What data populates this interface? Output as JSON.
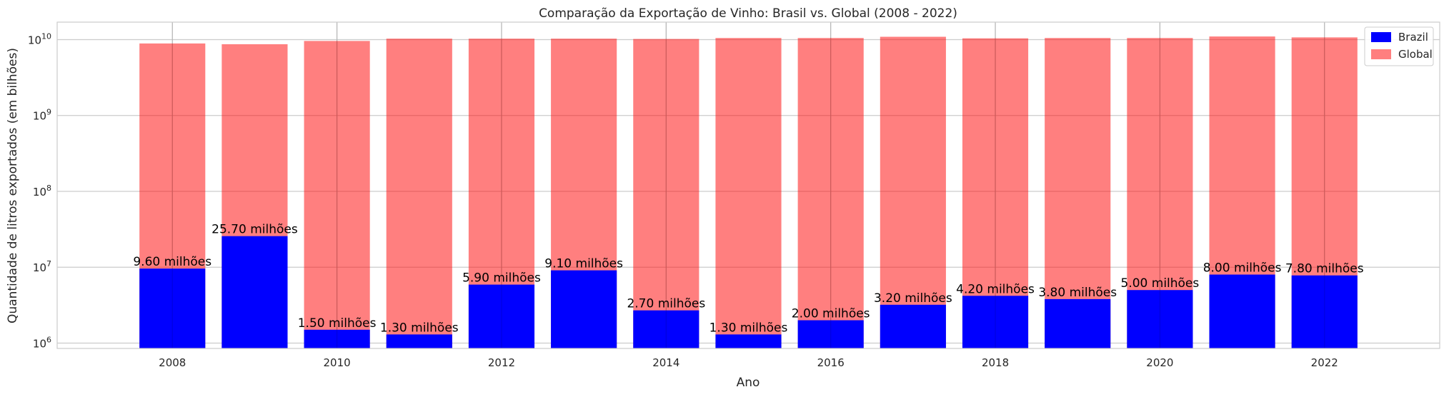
{
  "chart_data": {
    "type": "bar",
    "title": "Comparação da Exportação de Vinho: Brasil vs. Global (2008 - 2022)",
    "xlabel": "Ano",
    "ylabel": "Quantidade de litros exportados (em bilhões)",
    "yscale": "log",
    "ylim": [
      850000,
      17000000000
    ],
    "xlim": [
      2006.6,
      2023.4
    ],
    "x_ticks": [
      2008,
      2010,
      2012,
      2014,
      2016,
      2018,
      2020,
      2022
    ],
    "y_ticks": [
      {
        "value": 1000000,
        "base": "10",
        "exp": "6"
      },
      {
        "value": 10000000,
        "base": "10",
        "exp": "7"
      },
      {
        "value": 100000000,
        "base": "10",
        "exp": "8"
      },
      {
        "value": 1000000000,
        "base": "10",
        "exp": "9"
      },
      {
        "value": 10000000000,
        "base": "10",
        "exp": "10"
      }
    ],
    "grid": true,
    "legend_position": "top-right",
    "x": [
      2008,
      2009,
      2010,
      2011,
      2012,
      2013,
      2014,
      2015,
      2016,
      2017,
      2018,
      2019,
      2020,
      2021,
      2022
    ],
    "series": [
      {
        "name": "Brazil",
        "color": "#0000ff",
        "values": [
          9600000,
          25700000,
          1500000,
          1300000,
          5900000,
          9100000,
          2700000,
          1300000,
          2000000,
          3200000,
          4200000,
          3800000,
          5000000,
          8000000,
          7800000
        ],
        "labels": [
          "9.60 milhões",
          "25.70 milhões",
          "1.50 milhões",
          "1.30 milhões",
          "5.90 milhões",
          "9.10 milhões",
          "2.70 milhões",
          "1.30 milhões",
          "2.00 milhões",
          "3.20 milhões",
          "4.20 milhões",
          "3.80 milhões",
          "5.00 milhões",
          "8.00 milhões",
          "7.80 milhões"
        ]
      },
      {
        "name": "Global",
        "color": "#ff0000",
        "opacity": 0.5,
        "values": [
          8900000000,
          8700000000,
          9600000000,
          10300000000,
          10300000000,
          10300000000,
          10200000000,
          10500000000,
          10500000000,
          10900000000,
          10400000000,
          10500000000,
          10500000000,
          11000000000,
          10700000000
        ]
      }
    ]
  }
}
